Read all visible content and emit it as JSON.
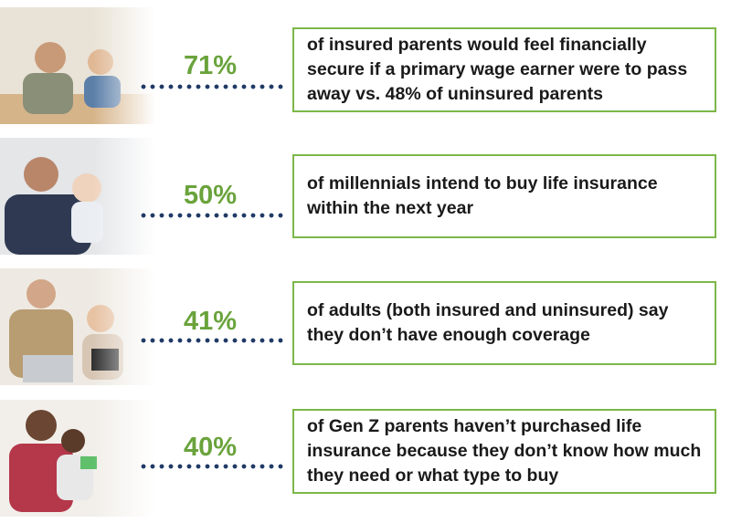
{
  "items": [
    {
      "percent": "71%",
      "text": "of insured parents would feel financially secure if a primary wage earner were to pass away vs. 48% of uninsured parents"
    },
    {
      "percent": "50%",
      "text": "of millennials intend to buy life insurance within the next year"
    },
    {
      "percent": "41%",
      "text": "of adults (both insured and uninsured) say they don’t have enough coverage"
    },
    {
      "percent": "40%",
      "text": "of Gen Z parents haven’t purchased life insurance because they don’t know how much they need or what type to buy"
    }
  ]
}
